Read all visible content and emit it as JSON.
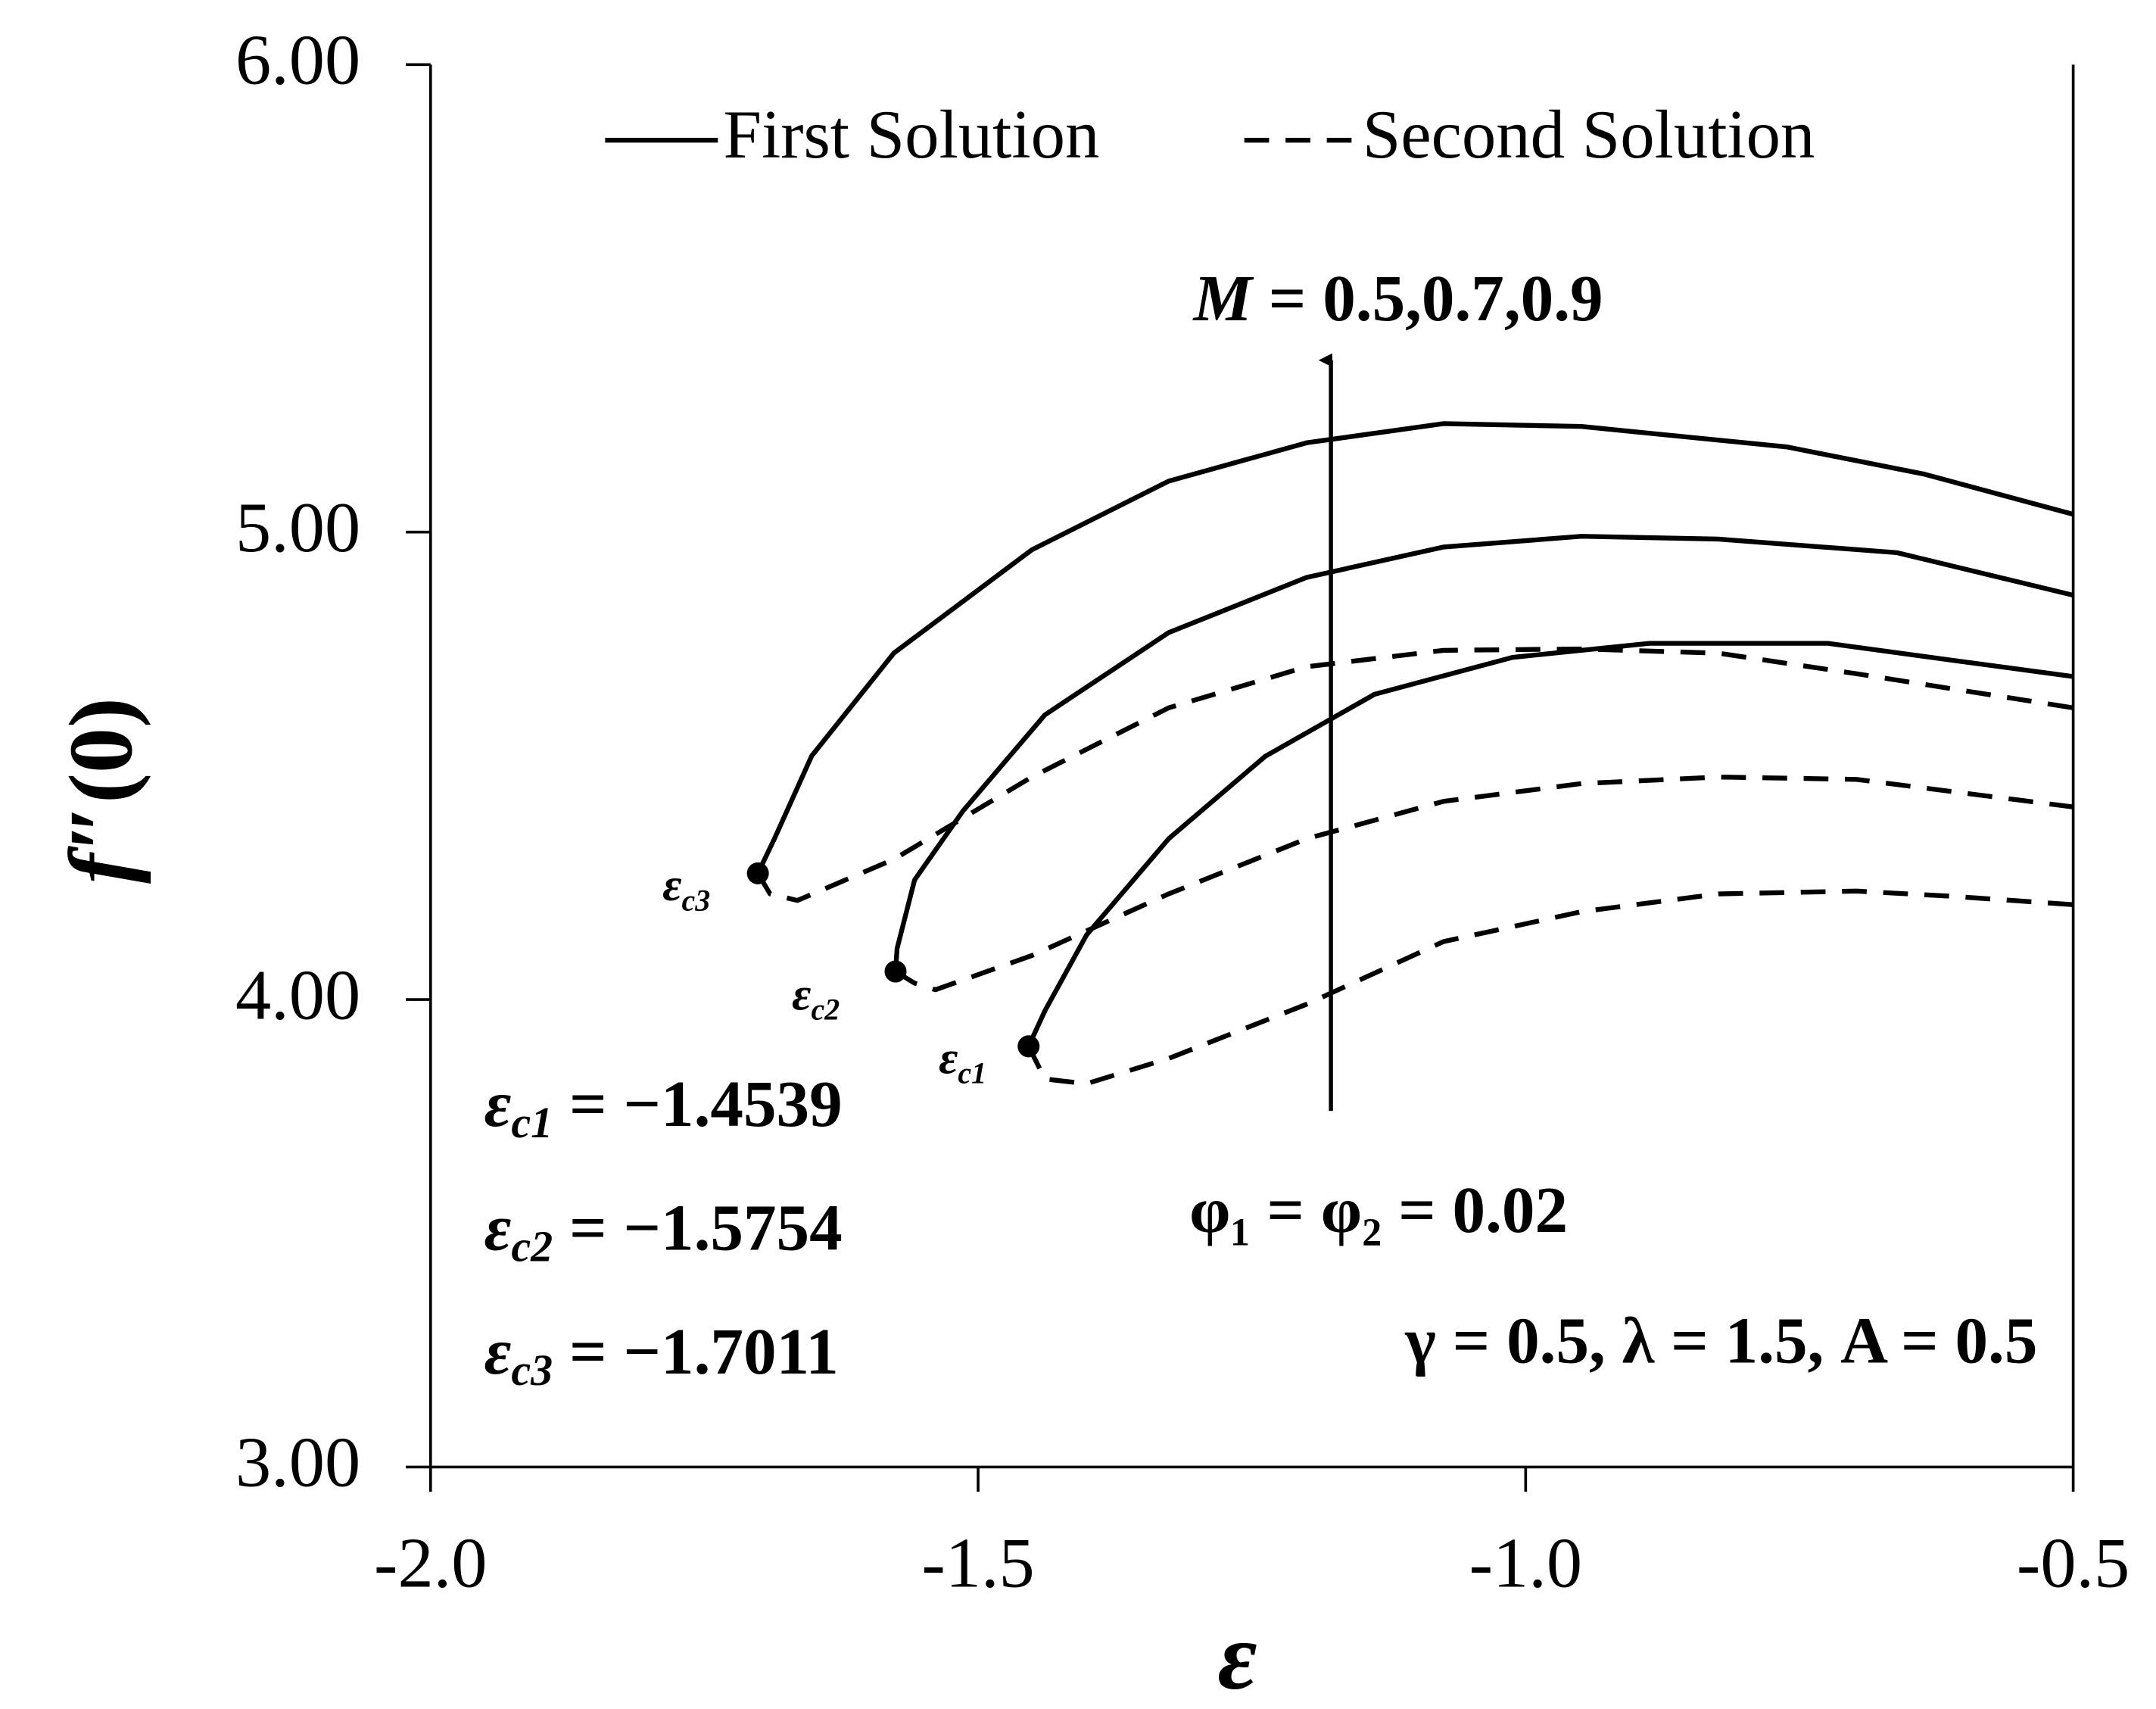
{
  "chart_data": {
    "type": "line",
    "xlabel": "ε",
    "ylabel": {
      "main": "f",
      "prime": "″",
      "rest": "(0)"
    },
    "xlim": [
      -2,
      -0.5
    ],
    "ylim": [
      3,
      6
    ],
    "xticks": [
      {
        "value": -2,
        "label": "-2.0"
      },
      -1.5,
      {
        "value": -1,
        "label": "-1.0"
      },
      -0.5
    ],
    "yticks": [
      {
        "value": 3,
        "label": "3.00"
      },
      {
        "value": 4,
        "label": "4.00"
      },
      {
        "value": 5,
        "label": "5.00"
      },
      {
        "value": 6,
        "label": "6.00"
      }
    ],
    "color": "#000000",
    "series": [
      {
        "name": "First Solution",
        "dash": "solid",
        "curves": [
          {
            "x": [
              -1.4539,
              -1.439,
              -1.401,
              -1.326,
              -1.238,
              -1.138,
              -1.012,
              -0.887,
              -0.724,
              -0.611,
              -0.5
            ],
            "y": [
              3.9,
              3.976,
              4.138,
              4.344,
              4.52,
              4.653,
              4.732,
              4.762,
              4.762,
              4.726,
              4.691
            ]
          },
          {
            "x": [
              -1.5754,
              -1.574,
              -1.558,
              -1.514,
              -1.439,
              -1.326,
              -1.2,
              -1.075,
              -0.949,
              -0.824,
              -0.661,
              -0.5
            ],
            "y": [
              4.06,
              4.109,
              4.256,
              4.403,
              4.609,
              4.785,
              4.903,
              4.968,
              4.991,
              4.985,
              4.956,
              4.865
            ]
          },
          {
            "x": [
              -1.7011,
              -1.686,
              -1.652,
              -1.577,
              -1.451,
              -1.326,
              -1.2,
              -1.075,
              -0.949,
              -0.761,
              -0.636,
              -0.5
            ],
            "y": [
              4.27,
              4.344,
              4.521,
              4.741,
              4.962,
              5.109,
              5.191,
              5.232,
              5.226,
              5.182,
              5.124,
              5.038
            ]
          }
        ]
      },
      {
        "name": "Second Solution",
        "dash": "dashed",
        "curves": [
          {
            "x": [
              -1.4539,
              -1.439,
              -1.401,
              -1.326,
              -1.2,
              -1.075,
              -0.949,
              -0.824,
              -0.698,
              -0.611,
              -0.5
            ],
            "y": [
              3.9,
              3.83,
              3.82,
              3.874,
              3.99,
              4.124,
              4.188,
              4.226,
              4.232,
              4.221,
              4.203
            ]
          },
          {
            "x": [
              -1.5754,
              -1.558,
              -1.539,
              -1.451,
              -1.326,
              -1.2,
              -1.075,
              -0.949,
              -0.824,
              -0.698,
              -0.5
            ],
            "y": [
              4.06,
              4.035,
              4.021,
              4.094,
              4.226,
              4.344,
              4.424,
              4.462,
              4.476,
              4.471,
              4.412
            ]
          },
          {
            "x": [
              -1.7011,
              -1.69,
              -1.665,
              -1.577,
              -1.451,
              -1.326,
              -1.2,
              -1.075,
              -0.949,
              -0.824,
              -0.698,
              -0.5
            ],
            "y": [
              4.27,
              4.226,
              4.212,
              4.3,
              4.476,
              4.624,
              4.712,
              4.747,
              4.75,
              4.741,
              4.697,
              4.624
            ]
          }
        ]
      }
    ],
    "critical_points": [
      {
        "symbol": "ε",
        "sub": "c1",
        "x": -1.4539,
        "y": 3.9
      },
      {
        "symbol": "ε",
        "sub": "c2",
        "x": -1.5754,
        "y": 4.06
      },
      {
        "symbol": "ε",
        "sub": "c3",
        "x": -1.7011,
        "y": 4.27
      }
    ],
    "critical_values": [
      {
        "symbol": "ε",
        "sub": "c1",
        "rest": " = −1.4539"
      },
      {
        "symbol": "ε",
        "sub": "c2",
        "rest": " = −1.5754"
      },
      {
        "symbol": "ε",
        "sub": "c3",
        "rest": " = −1.7011"
      }
    ],
    "annotations": {
      "arrow": {
        "symbol": "M",
        "rest": " = 0.5,0.7,0.9"
      },
      "phi": "φ₁ = φ₂ = 0.02",
      "params": "γ = 0.5, λ = 1.5, A = 0.5"
    }
  }
}
